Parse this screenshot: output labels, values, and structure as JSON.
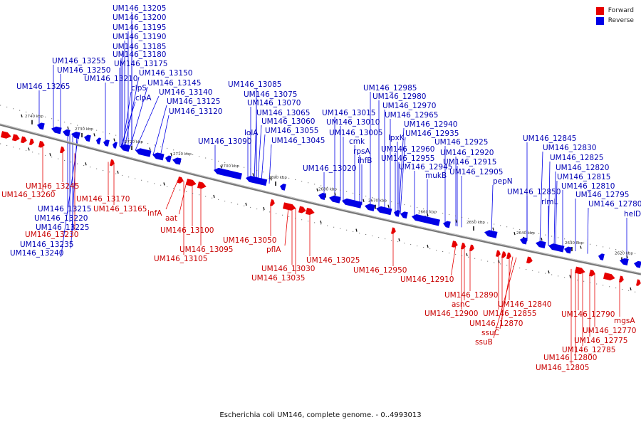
{
  "colors": {
    "forward": "#e60000",
    "reverse": "#0000e6",
    "backbone": "#777777"
  },
  "legend": [
    {
      "label": "Forward",
      "strand": "forward"
    },
    {
      "label": "Reverse",
      "strand": "reverse"
    }
  ],
  "caption": "Escherichia coli UM146, complete genome. - 0..4993013",
  "ticks": [
    "2740 kbp",
    "2730 kbp",
    "2720 kbp",
    "2710 kbp",
    "2700 kbp",
    "2690 kbp",
    "2680 kbp",
    "2670 kbp",
    "2660 kbp",
    "2650 kbp",
    "2640 kbp",
    "2630 kbp",
    "2620 kbp"
  ],
  "reverse_labels": [
    "UM146_13205",
    "UM146_13200",
    "UM146_13195",
    "UM146_13190",
    "UM146_13185",
    "UM146_13180",
    "UM146_13175",
    "UM146_13255",
    "UM146_13250",
    "UM146_13210",
    "UM146_13150",
    "UM146_13265",
    "UM146_13145",
    "clpS",
    "UM146_13140",
    "clpA",
    "UM146_13125",
    "UM146_13120",
    "UM146_13085",
    "UM146_13075",
    "UM146_13070",
    "UM146_13065",
    "UM146_13060",
    "lolA",
    "UM146_13055",
    "UM146_13090",
    "UM146_13045",
    "UM146_13015",
    "UM146_13010",
    "UM146_13005",
    "cmk",
    "rpsA",
    "ihfB",
    "UM146_13020",
    "UM146_12985",
    "UM146_12980",
    "UM146_12970",
    "UM146_12965",
    "lpxK",
    "UM146_12940",
    "UM146_12935",
    "UM146_12960",
    "UM146_12955",
    "UM146_12945",
    "mukB",
    "UM146_12925",
    "UM146_12920",
    "UM146_12915",
    "UM146_12905",
    "pepN",
    "UM146_12845",
    "UM146_12830",
    "UM146_12825",
    "UM146_12820",
    "UM146_12815",
    "UM146_12850",
    "UM146_12810",
    "rlmL",
    "UM146_12795",
    "UM146_12780",
    "helD",
    "UM146_13215",
    "UM146_13220",
    "UM146_13225",
    "UM146_13235",
    "UM146_13240"
  ],
  "forward_labels": [
    "UM146_13245",
    "UM146_13260",
    "UM146_13170",
    "UM146_13165",
    "infA",
    "aat",
    "UM146_13100",
    "UM146_13095",
    "UM146_13105",
    "UM146_13050",
    "pflA",
    "UM146_13030",
    "UM146_13035",
    "UM146_13025",
    "UM146_12950",
    "UM146_12910",
    "UM146_12890",
    "asnC",
    "UM146_12900",
    "UM146_12855",
    "UM146_12840",
    "UM146_12870",
    "ssuC",
    "ssuB",
    "UM146_12790",
    "mgsA",
    "UM146_12770",
    "UM146_12775",
    "UM146_12785",
    "UM146_12800",
    "UM146_12805",
    "UM146_13230"
  ]
}
